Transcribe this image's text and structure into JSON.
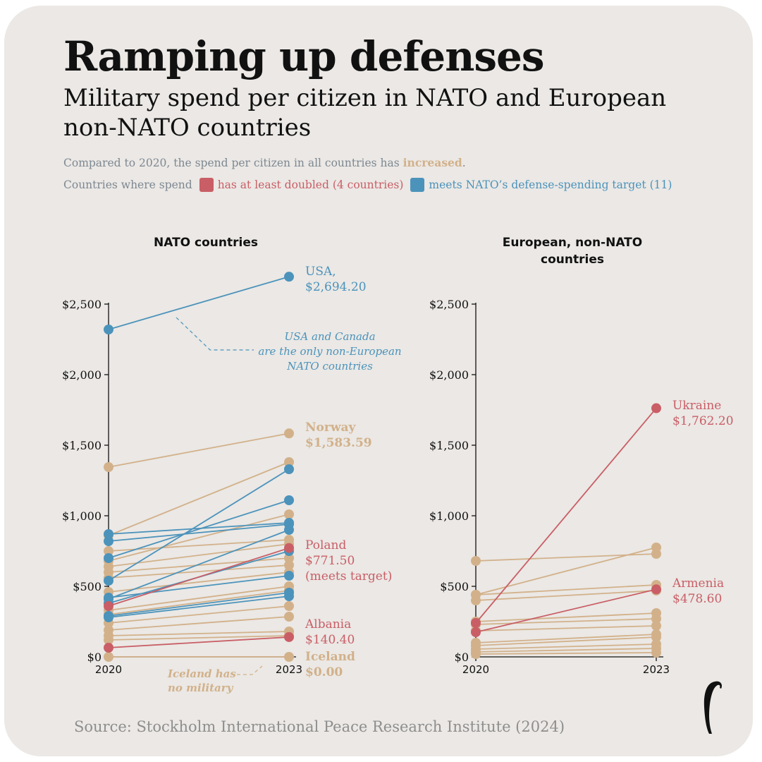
{
  "title": "Ramping up defenses",
  "subtitle": "Military spend per citizen in NATO and European non-NATO countries",
  "notes": {
    "line1_pre": "Compared to 2020, the spend per citizen in all countries has ",
    "line1_highlight": "increased",
    "line1_post": ".",
    "line2_pre": "Countries where spend",
    "legend_red": "has at least doubled (4 countries)",
    "legend_blue": "meets NATO’s defense-spending target (11)"
  },
  "colors": {
    "background": "#ebe8e5",
    "increased": "#d2b18a",
    "doubled": "#c95e66",
    "meets_target": "#4b93bb",
    "axis": "#111111"
  },
  "source": "Source: Stockholm International Peace Research Institute (2024)",
  "chart_data": [
    {
      "type": "line",
      "title": "NATO countries",
      "x": [
        "2020",
        "2023"
      ],
      "ylim": [
        0,
        2500
      ],
      "yticks": [
        0,
        500,
        1000,
        1500,
        2000,
        2500
      ],
      "ytick_labels": [
        "$0",
        "$500",
        "$1,000",
        "$1,500",
        "$2,000",
        "$2,500"
      ],
      "grid": false,
      "series": [
        {
          "name": "USA",
          "values": [
            2320,
            2694.2
          ],
          "group": "meets_target",
          "label": "USA,|$2,694.20"
        },
        {
          "values": [
            820,
            940
          ],
          "group": "meets_target"
        },
        {
          "values": [
            870,
            950
          ],
          "group": "meets_target"
        },
        {
          "values": [
            700,
            1110
          ],
          "group": "meets_target"
        },
        {
          "values": [
            540,
            1330
          ],
          "group": "meets_target"
        },
        {
          "values": [
            410,
            900
          ],
          "group": "meets_target"
        },
        {
          "values": [
            380,
            750
          ],
          "group": "meets_target"
        },
        {
          "values": [
            420,
            575
          ],
          "group": "meets_target"
        },
        {
          "values": [
            290,
            455
          ],
          "group": "meets_target"
        },
        {
          "values": [
            280,
            430
          ],
          "group": "meets_target"
        },
        {
          "name": "Norway",
          "values": [
            1345,
            1583.59
          ],
          "group": "increased",
          "label": "Norway|$1,583.59"
        },
        {
          "values": [
            860,
            1380
          ],
          "group": "increased"
        },
        {
          "values": [
            680,
            1010
          ],
          "group": "increased"
        },
        {
          "values": [
            750,
            830
          ],
          "group": "increased"
        },
        {
          "values": [
            640,
            800
          ],
          "group": "increased"
        },
        {
          "values": [
            600,
            700
          ],
          "group": "increased"
        },
        {
          "values": [
            560,
            650
          ],
          "group": "increased"
        },
        {
          "values": [
            460,
            600
          ],
          "group": "increased"
        },
        {
          "values": [
            330,
            500
          ],
          "group": "increased"
        },
        {
          "values": [
            300,
            470
          ],
          "group": "increased"
        },
        {
          "values": [
            240,
            360
          ],
          "group": "increased"
        },
        {
          "values": [
            190,
            285
          ],
          "group": "increased"
        },
        {
          "values": [
            150,
            180
          ],
          "group": "increased"
        },
        {
          "values": [
            120,
            150
          ],
          "group": "increased"
        },
        {
          "name": "Iceland",
          "values": [
            0,
            0
          ],
          "group": "increased",
          "label": "Iceland|$0.00"
        },
        {
          "name": "Poland",
          "values": [
            360,
            771.5
          ],
          "group": "doubled",
          "label": "Poland|$771.50|(meets target)"
        },
        {
          "name": "Albania",
          "values": [
            65,
            140.4
          ],
          "group": "doubled",
          "label": "Albania|$140.40"
        }
      ],
      "annotations": [
        {
          "text": "USA and Canada|are the only non-European|NATO countries",
          "color": "meets_target"
        },
        {
          "text": "Iceland has|no military",
          "color": "increased"
        }
      ]
    },
    {
      "type": "line",
      "title": "European, non-NATO|countries",
      "x": [
        "2020",
        "2023"
      ],
      "ylim": [
        0,
        2500
      ],
      "yticks": [
        0,
        500,
        1000,
        1500,
        2000,
        2500
      ],
      "ytick_labels": [
        "$0",
        "$500",
        "$1,000",
        "$1,500",
        "$2,000",
        "$2,500"
      ],
      "grid": false,
      "series": [
        {
          "name": "Ukraine",
          "values": [
            240,
            1762.2
          ],
          "group": "doubled",
          "label": "Ukraine|$1,762.20"
        },
        {
          "name": "Armenia",
          "values": [
            175,
            478.6
          ],
          "group": "doubled",
          "label": "Armenia|$478.60"
        },
        {
          "values": [
            680,
            730
          ],
          "group": "increased"
        },
        {
          "values": [
            440,
            775
          ],
          "group": "increased"
        },
        {
          "values": [
            440,
            510
          ],
          "group": "increased"
        },
        {
          "values": [
            400,
            470
          ],
          "group": "increased"
        },
        {
          "values": [
            250,
            310
          ],
          "group": "increased"
        },
        {
          "values": [
            230,
            270
          ],
          "group": "increased"
        },
        {
          "values": [
            185,
            220
          ],
          "group": "increased"
        },
        {
          "values": [
            100,
            160
          ],
          "group": "increased"
        },
        {
          "values": [
            80,
            140
          ],
          "group": "increased"
        },
        {
          "values": [
            55,
            90
          ],
          "group": "increased"
        },
        {
          "values": [
            35,
            60
          ],
          "group": "increased"
        },
        {
          "values": [
            20,
            30
          ],
          "group": "increased"
        }
      ]
    }
  ]
}
